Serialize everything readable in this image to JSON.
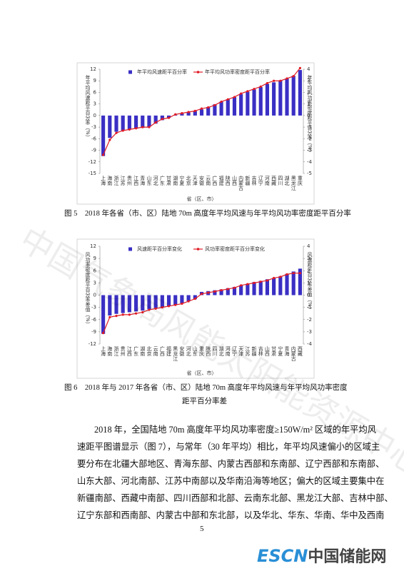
{
  "document": {
    "caption1": "图 5　2018 年各省（市、区）陆地 70m 高度年平均风速与年平均风功率密度距平百分率",
    "caption2_lines": [
      "图 6　2018 年与 2017 年各省（市、区）陆地 70m 高度年平均风速与年平均风功率密度",
      "距平百分率差"
    ],
    "paragraph_lines": [
      "2018 年，全国陆地 70m 高度年平均风功率密度≥150W/m² 区域的年平均风",
      "速距平图谱显示（图 7），与常年（30 年平均）相比，年平均风速偏小的区域主",
      "要分布在北疆大部地区、青海东部、内蒙古西部和东南部、辽宁西部和东南部、",
      "山东大部、河北南部、江苏中南部以及华南沿海等地区；偏大的区域主要集中在",
      "新疆南部、西藏中南部、四川西部和北部、云南东北部、黑龙江大部、吉林中部、",
      "辽宁东部和西南部、内蒙古中部和东北部，以及华北、华东、华南、华中及西南"
    ],
    "page_number": "5",
    "watermark": "中国气象局风能太阳能资源中心",
    "logo_latin": "ESCN",
    "logo_cn": "中国储能网"
  },
  "chart_data": [
    {
      "type": "bar",
      "ylabel": "年平均风速距平百分率（%）",
      "y2label": "年平均风功率密度距平百分率（%）",
      "xlabel": "省（区、市）",
      "categories": [
        "上海",
        "海南",
        "浙江",
        "江苏",
        "贵州",
        "江西",
        "青海",
        "山东",
        "河北",
        "广东",
        "甘肃",
        "湖南",
        "宁夏",
        "北京",
        "天津",
        "安徽",
        "云南",
        "广西",
        "福建",
        "陕西",
        "山西",
        "内蒙古",
        "新疆",
        "吉林",
        "辽宁",
        "河南",
        "西藏",
        "四川",
        "湖北",
        "黑龙江",
        "重庆"
      ],
      "ylim": [
        -15,
        12
      ],
      "yticks": [
        -15,
        -12,
        -9,
        -6,
        -3,
        0,
        3,
        6,
        9,
        12
      ],
      "y2lim": [
        -5,
        4
      ],
      "y2ticks": [
        -5,
        -4,
        -3,
        -2,
        -1,
        0,
        1,
        2,
        3,
        4
      ],
      "series": [
        {
          "name": "年平均风速距平百分率",
          "type": "bar",
          "color": "#3a2fc4",
          "axis": "y",
          "values": [
            -10.5,
            -5.8,
            -4.2,
            -3.9,
            -3.6,
            -3.4,
            -3.2,
            -2.9,
            -2.1,
            -1.2,
            -0.6,
            0.2,
            0.5,
            0.8,
            1.2,
            1.6,
            2.2,
            2.9,
            3.6,
            4.2,
            4.8,
            5.6,
            6.2,
            6.8,
            7.4,
            8.2,
            8.6,
            9.1,
            9.6,
            10.3,
            11.8
          ]
        },
        {
          "name": "年平均风功率密度距平百分率",
          "type": "line",
          "color": "#e01b24",
          "axis": "y2",
          "values": [
            -3.4,
            -2.1,
            -1.5,
            -1.3,
            -1.2,
            -1.1,
            -1.0,
            -1.0,
            -0.6,
            -0.3,
            -0.2,
            0.1,
            0.2,
            0.3,
            0.4,
            0.6,
            0.7,
            0.9,
            1.2,
            1.4,
            1.6,
            1.9,
            2.1,
            2.3,
            2.5,
            2.8,
            3.0,
            3.0,
            3.2,
            3.4,
            4.1
          ]
        }
      ]
    },
    {
      "type": "bar",
      "ylabel": "风功率密度距平百分率差值（%）",
      "y2label": "风速距平百分率差值（%）",
      "xlabel": "省（区、市）",
      "categories": [
        "上海",
        "海南",
        "浙江",
        "贵州",
        "江西",
        "广东",
        "湖南",
        "北京",
        "云南",
        "广西",
        "福建",
        "黑龙江",
        "安徽",
        "河北",
        "山东",
        "重庆",
        "陕西",
        "四川",
        "湖北",
        "河南",
        "辽宁",
        "天津",
        "江苏",
        "新疆",
        "吉林",
        "山西",
        "甘肃",
        "宁夏",
        "青海",
        "内蒙古",
        "西藏"
      ],
      "ylim": [
        -12,
        12
      ],
      "yticks": [
        -12,
        -9,
        -6,
        -3,
        0,
        3,
        6,
        9,
        12
      ],
      "y2lim": [
        -4,
        4
      ],
      "y2ticks": [
        -4,
        -3,
        -2,
        -1,
        0,
        1,
        2,
        3,
        4
      ],
      "series": [
        {
          "name": "风速距平百分率变化",
          "type": "bar",
          "color": "#3a2fc4",
          "axis": "y",
          "values": [
            -9.5,
            -5.0,
            -4.6,
            -4.4,
            -4.2,
            -4.0,
            -3.8,
            -3.5,
            -3.2,
            -3.0,
            -2.7,
            -2.4,
            -2.0,
            -1.5,
            -1.0,
            0.8,
            1.0,
            1.2,
            1.4,
            1.7,
            2.0,
            2.4,
            2.8,
            3.2,
            3.5,
            3.9,
            4.2,
            4.6,
            5.2,
            5.8,
            6.5
          ]
        },
        {
          "name": "风功率密度距平百分率变化",
          "type": "line",
          "color": "#e01b24",
          "axis": "y2",
          "values": [
            -3.1,
            -1.8,
            -1.7,
            -1.6,
            -1.6,
            -1.5,
            -1.4,
            -1.2,
            -1.1,
            -1.0,
            -0.9,
            -0.8,
            -0.7,
            -0.5,
            -0.3,
            0.1,
            0.2,
            0.3,
            0.4,
            0.5,
            0.6,
            0.8,
            0.9,
            1.0,
            1.1,
            1.2,
            1.4,
            1.5,
            1.7,
            1.8,
            1.8
          ]
        }
      ]
    }
  ]
}
